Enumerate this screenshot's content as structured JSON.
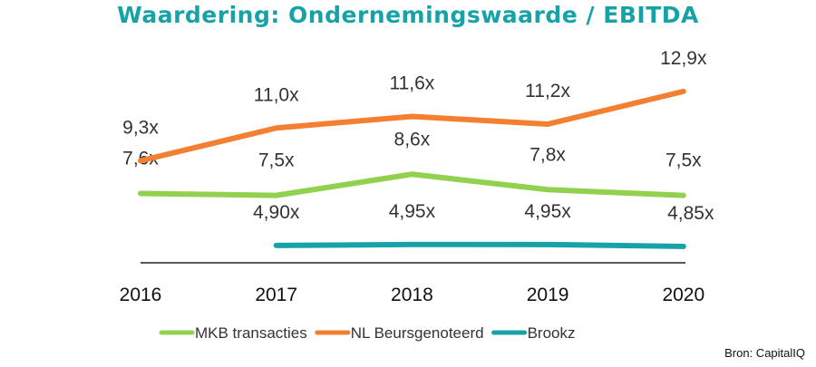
{
  "chart_data": {
    "type": "line",
    "title": "Waardering: Ondernemingswaarde / EBITDA",
    "categories": [
      "2016",
      "2017",
      "2018",
      "2019",
      "2020"
    ],
    "ylim": [
      4,
      16
    ],
    "grid": false,
    "legend_position": "bottom",
    "series": [
      {
        "name": "MKB transacties",
        "color": "#92d050",
        "values": [
          7.6,
          7.5,
          8.6,
          7.8,
          7.5
        ],
        "labels": [
          "7,6x",
          "7,5x",
          "8,6x",
          "7,8x",
          "7,5x"
        ]
      },
      {
        "name": "NL Beursgenoteerd",
        "color": "#f47f30",
        "values": [
          9.3,
          11.0,
          11.6,
          11.2,
          12.9
        ],
        "labels": [
          "9,3x",
          "11,0x",
          "11,6x",
          "11,2x",
          "12,9x"
        ]
      },
      {
        "name": "Brookz",
        "color": "#17a2a8",
        "values": [
          null,
          4.9,
          4.95,
          4.95,
          4.85
        ],
        "labels": [
          null,
          "4,90x",
          "4,95x",
          "4,95x",
          "4,85x"
        ]
      }
    ],
    "source": "Bron: CapitalIQ"
  }
}
